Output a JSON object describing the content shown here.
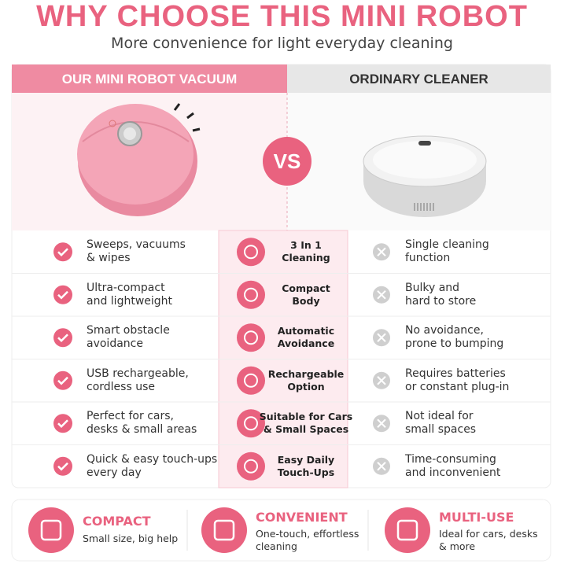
{
  "header": {
    "title": "WHY CHOOSE THIS MINI ROBOT",
    "subtitle": "More convenience for light everyday cleaning"
  },
  "comparison": {
    "ours_heading": "OUR MINI ROBOT VACUUM",
    "vs": "VS",
    "theirs_heading": "ORDINARY CLEANER",
    "rows": [
      {
        "ours": [
          "Sweeps, vacuums",
          "& wipes"
        ],
        "feature": [
          "3 In 1",
          "Cleaning"
        ],
        "theirs": [
          "Single cleaning",
          "function"
        ]
      },
      {
        "ours": [
          "Ultra-compact",
          "and lightweight"
        ],
        "feature": [
          "Compact",
          "Body"
        ],
        "theirs": [
          "Bulky and",
          "hard to store"
        ]
      },
      {
        "ours": [
          "Smart obstacle",
          "avoidance"
        ],
        "feature": [
          "Automatic",
          "Avoidance"
        ],
        "theirs": [
          "No avoidance,",
          "prone to bumping"
        ]
      },
      {
        "ours": [
          "USB rechargeable,",
          "cordless use"
        ],
        "feature": [
          "Rechargeable",
          "Option"
        ],
        "theirs": [
          "Requires batteries",
          "or constant plug-in"
        ]
      },
      {
        "ours": [
          "Perfect for cars,",
          "desks & small areas"
        ],
        "feature": [
          "Suitable for Cars",
          "& Small Spaces"
        ],
        "theirs": [
          "Not ideal for",
          "small spaces"
        ]
      },
      {
        "ours": [
          "Quick & easy touch-ups",
          "every day"
        ],
        "feature": [
          "Easy Daily",
          "Touch-Ups"
        ],
        "theirs": [
          "Time-consuming",
          "and inconvenient"
        ]
      }
    ]
  },
  "benefits": [
    {
      "title": "COMPACT",
      "text": [
        "Small size, big help"
      ]
    },
    {
      "title": "CONVENIENT",
      "text": [
        "One-touch, effortless",
        "cleaning"
      ]
    },
    {
      "title": "MULTI-USE",
      "text": [
        "Ideal for cars, desks",
        "& more"
      ]
    }
  ]
}
